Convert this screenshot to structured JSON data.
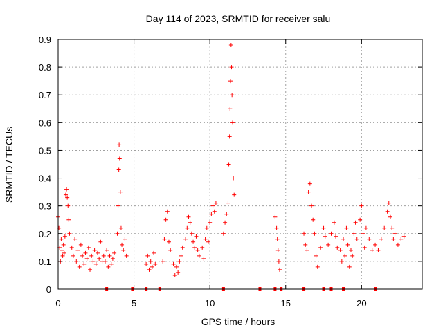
{
  "chart_data": {
    "type": "scatter",
    "title": "Day 114 of 2023, SRMTID for receiver salu",
    "xlabel": "GPS time / hours",
    "ylabel": "SRMTID / TECUs",
    "xlim": [
      0,
      24
    ],
    "ylim": [
      0,
      0.9
    ],
    "xticks": [
      0,
      5,
      10,
      15,
      20
    ],
    "xtick_labels": [
      "0",
      "5",
      "10",
      "15",
      "20"
    ],
    "yticks": [
      0,
      0.1,
      0.2,
      0.3,
      0.4,
      0.5,
      0.6,
      0.7,
      0.8,
      0.9
    ],
    "ytick_labels": [
      "0",
      "0.1",
      "0.2",
      "0.3",
      "0.4",
      "0.5",
      "0.6",
      "0.7",
      "0.8",
      "0.9"
    ],
    "grid": true,
    "marker": "+",
    "marker_color": "#ff0000",
    "grid_color": "#a0a0a0",
    "series": [
      {
        "name": "SRMTID",
        "segments": [
          {
            "x_start": 0.0,
            "x_end": 0.5,
            "points": [
              [
                0.0,
                0.26
              ],
              [
                0.05,
                0.22
              ],
              [
                0.1,
                0.15
              ],
              [
                0.15,
                0.1
              ],
              [
                0.2,
                0.18
              ],
              [
                0.25,
                0.14
              ],
              [
                0.3,
                0.12
              ],
              [
                0.35,
                0.16
              ],
              [
                0.4,
                0.13
              ],
              [
                0.45,
                0.19
              ]
            ]
          },
          {
            "x_start": 0.5,
            "x_end": 0.8,
            "points": [
              [
                0.5,
                0.34
              ],
              [
                0.55,
                0.36
              ],
              [
                0.6,
                0.33
              ],
              [
                0.65,
                0.3
              ],
              [
                0.7,
                0.25
              ],
              [
                0.75,
                0.2
              ]
            ]
          },
          {
            "x_start": 0.8,
            "x_end": 3.0,
            "points": [
              [
                0.9,
                0.15
              ],
              [
                1.0,
                0.12
              ],
              [
                1.1,
                0.18
              ],
              [
                1.2,
                0.1
              ],
              [
                1.3,
                0.14
              ],
              [
                1.4,
                0.08
              ],
              [
                1.5,
                0.16
              ],
              [
                1.6,
                0.12
              ],
              [
                1.7,
                0.09
              ],
              [
                1.8,
                0.13
              ],
              [
                1.9,
                0.11
              ],
              [
                2.0,
                0.15
              ],
              [
                2.1,
                0.07
              ],
              [
                2.2,
                0.12
              ],
              [
                2.3,
                0.1
              ],
              [
                2.4,
                0.14
              ],
              [
                2.5,
                0.09
              ],
              [
                2.6,
                0.13
              ],
              [
                2.7,
                0.11
              ],
              [
                2.8,
                0.17
              ],
              [
                2.9,
                0.1
              ],
              [
                3.0,
                0.12
              ]
            ]
          },
          {
            "x_start": 3.0,
            "x_end": 3.8,
            "points": [
              [
                3.1,
                0.1
              ],
              [
                3.2,
                0.14
              ],
              [
                3.3,
                0.08
              ],
              [
                3.4,
                0.12
              ],
              [
                3.5,
                0.09
              ],
              [
                3.6,
                0.11
              ],
              [
                3.7,
                0.13
              ]
            ]
          },
          {
            "x_start": 3.8,
            "x_end": 4.6,
            "points": [
              [
                3.9,
                0.2
              ],
              [
                3.95,
                0.3
              ],
              [
                4.0,
                0.43
              ],
              [
                4.02,
                0.52
              ],
              [
                4.05,
                0.47
              ],
              [
                4.1,
                0.35
              ],
              [
                4.15,
                0.22
              ],
              [
                4.2,
                0.16
              ],
              [
                4.3,
                0.14
              ],
              [
                4.4,
                0.18
              ],
              [
                4.5,
                0.12
              ]
            ]
          },
          {
            "x_start": 5.8,
            "x_end": 6.5,
            "points": [
              [
                5.8,
                0.09
              ],
              [
                5.9,
                0.12
              ],
              [
                6.0,
                0.07
              ],
              [
                6.1,
                0.1
              ],
              [
                6.2,
                0.08
              ],
              [
                6.3,
                0.13
              ],
              [
                6.4,
                0.09
              ]
            ]
          },
          {
            "x_start": 6.8,
            "x_end": 7.5,
            "points": [
              [
                6.9,
                0.1
              ],
              [
                7.0,
                0.18
              ],
              [
                7.1,
                0.25
              ],
              [
                7.2,
                0.28
              ],
              [
                7.3,
                0.17
              ],
              [
                7.4,
                0.14
              ]
            ]
          },
          {
            "x_start": 7.5,
            "x_end": 8.3,
            "points": [
              [
                7.6,
                0.09
              ],
              [
                7.7,
                0.05
              ],
              [
                7.8,
                0.08
              ],
              [
                7.9,
                0.06
              ],
              [
                8.0,
                0.1
              ],
              [
                8.1,
                0.12
              ],
              [
                8.2,
                0.15
              ]
            ]
          },
          {
            "x_start": 8.3,
            "x_end": 9.4,
            "points": [
              [
                8.4,
                0.18
              ],
              [
                8.5,
                0.22
              ],
              [
                8.6,
                0.26
              ],
              [
                8.7,
                0.24
              ],
              [
                8.8,
                0.2
              ],
              [
                8.9,
                0.17
              ],
              [
                9.0,
                0.15
              ],
              [
                9.1,
                0.19
              ],
              [
                9.2,
                0.14
              ],
              [
                9.3,
                0.12
              ]
            ]
          },
          {
            "x_start": 9.4,
            "x_end": 10.5,
            "points": [
              [
                9.5,
                0.15
              ],
              [
                9.6,
                0.11
              ],
              [
                9.7,
                0.18
              ],
              [
                9.8,
                0.22
              ],
              [
                9.9,
                0.17
              ],
              [
                10.0,
                0.24
              ],
              [
                10.1,
                0.27
              ],
              [
                10.2,
                0.3
              ],
              [
                10.3,
                0.28
              ],
              [
                10.4,
                0.31
              ]
            ]
          },
          {
            "x_start": 10.8,
            "x_end": 11.6,
            "points": [
              [
                10.9,
                0.2
              ],
              [
                11.0,
                0.24
              ],
              [
                11.1,
                0.27
              ],
              [
                11.2,
                0.31
              ],
              [
                11.25,
                0.45
              ],
              [
                11.3,
                0.55
              ],
              [
                11.33,
                0.65
              ],
              [
                11.36,
                0.75
              ],
              [
                11.4,
                0.88
              ],
              [
                11.43,
                0.8
              ],
              [
                11.46,
                0.7
              ],
              [
                11.5,
                0.6
              ],
              [
                11.55,
                0.4
              ],
              [
                11.6,
                0.34
              ]
            ]
          },
          {
            "x_start": 14.3,
            "x_end": 14.7,
            "points": [
              [
                14.3,
                0.26
              ],
              [
                14.4,
                0.22
              ],
              [
                14.45,
                0.18
              ],
              [
                14.5,
                0.14
              ],
              [
                14.55,
                0.1
              ],
              [
                14.6,
                0.07
              ]
            ]
          },
          {
            "x_start": 16.2,
            "x_end": 17.0,
            "points": [
              [
                16.2,
                0.2
              ],
              [
                16.3,
                0.16
              ],
              [
                16.4,
                0.14
              ],
              [
                16.5,
                0.35
              ],
              [
                16.6,
                0.38
              ],
              [
                16.7,
                0.3
              ],
              [
                16.8,
                0.25
              ],
              [
                16.9,
                0.2
              ]
            ]
          },
          {
            "x_start": 17.0,
            "x_end": 18.5,
            "points": [
              [
                17.0,
                0.12
              ],
              [
                17.1,
                0.08
              ],
              [
                17.3,
                0.15
              ],
              [
                17.5,
                0.22
              ],
              [
                17.6,
                0.19
              ],
              [
                17.8,
                0.16
              ],
              [
                18.0,
                0.2
              ],
              [
                18.2,
                0.24
              ],
              [
                18.3,
                0.19
              ],
              [
                18.4,
                0.15
              ]
            ]
          },
          {
            "x_start": 18.5,
            "x_end": 19.8,
            "points": [
              [
                18.6,
                0.14
              ],
              [
                18.7,
                0.1
              ],
              [
                18.8,
                0.18
              ],
              [
                18.9,
                0.12
              ],
              [
                19.0,
                0.22
              ],
              [
                19.1,
                0.16
              ],
              [
                19.2,
                0.08
              ],
              [
                19.3,
                0.14
              ],
              [
                19.4,
                0.12
              ],
              [
                19.5,
                0.2
              ],
              [
                19.6,
                0.24
              ],
              [
                19.7,
                0.18
              ]
            ]
          },
          {
            "x_start": 19.8,
            "x_end": 21.0,
            "points": [
              [
                19.9,
                0.25
              ],
              [
                20.0,
                0.3
              ],
              [
                20.1,
                0.2
              ],
              [
                20.2,
                0.15
              ],
              [
                20.3,
                0.22
              ],
              [
                20.5,
                0.18
              ],
              [
                20.7,
                0.14
              ],
              [
                20.9,
                0.16
              ]
            ]
          },
          {
            "x_start": 21.0,
            "x_end": 22.8,
            "points": [
              [
                21.1,
                0.14
              ],
              [
                21.3,
                0.18
              ],
              [
                21.5,
                0.22
              ],
              [
                21.7,
                0.28
              ],
              [
                21.8,
                0.31
              ],
              [
                21.9,
                0.26
              ],
              [
                22.0,
                0.22
              ],
              [
                22.1,
                0.18
              ],
              [
                22.2,
                0.2
              ],
              [
                22.4,
                0.16
              ],
              [
                22.6,
                0.18
              ],
              [
                22.8,
                0.19
              ]
            ]
          }
        ]
      },
      {
        "name": "zero markers",
        "points": [
          [
            3.2,
            0
          ],
          [
            4.9,
            0
          ],
          [
            5.8,
            0
          ],
          [
            6.7,
            0
          ],
          [
            10.9,
            0
          ],
          [
            13.3,
            0
          ],
          [
            14.3,
            0
          ],
          [
            14.7,
            0
          ],
          [
            16.2,
            0
          ],
          [
            17.5,
            0
          ],
          [
            18.0,
            0
          ],
          [
            18.8,
            0
          ],
          [
            20.9,
            0
          ]
        ]
      }
    ]
  }
}
